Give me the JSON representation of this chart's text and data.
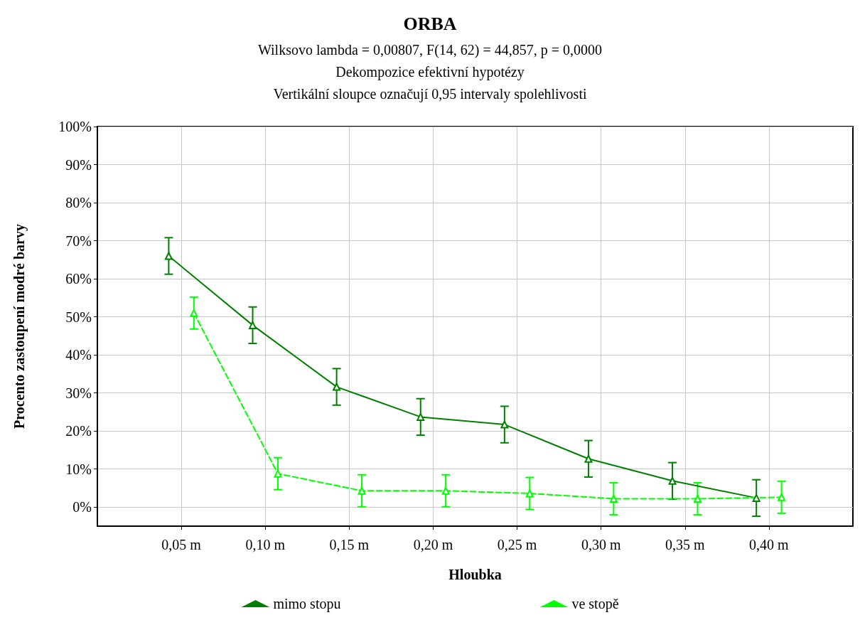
{
  "chart_data": {
    "type": "line",
    "title": "ORBA",
    "subtitle": "Wilksovo lambda = 0,00807, F(14, 62) = 44,857, p = 0,0000\nDekompozice efektivní hypotézy\nVertikální sloupce označují 0,95 intervaly spolehlivosti",
    "xlabel": "Hloubka",
    "ylabel": "Procento zastoupení modré barvy",
    "categories": [
      "0,05 m",
      "0,10 m",
      "0,15 m",
      "0,20 m",
      "0,25 m",
      "0,30 m",
      "0,35 m",
      "0,40 m"
    ],
    "series": [
      {
        "name": "mimo stopu",
        "color": "#007f00",
        "line_style": "solid",
        "values": [
          66,
          47.8,
          31.6,
          23.7,
          21.7,
          12.7,
          6.9,
          2.4
        ],
        "errors": [
          4.8,
          4.8,
          4.8,
          4.8,
          4.8,
          4.8,
          4.8,
          4.8
        ]
      },
      {
        "name": "ve stopě",
        "color": "#00ff00",
        "line_style": "dashed",
        "values": [
          51,
          8.8,
          4.3,
          4.3,
          3.6,
          2.2,
          2.2,
          2.6
        ],
        "errors": [
          4.2,
          4.2,
          4.2,
          4.2,
          4.2,
          4.2,
          4.2,
          4.2
        ]
      }
    ],
    "ylim": [
      -5,
      100
    ],
    "yticks": [
      {
        "value": 0,
        "label": "0%"
      },
      {
        "value": 10,
        "label": "10%"
      },
      {
        "value": 20,
        "label": "20%"
      },
      {
        "value": 30,
        "label": "30%"
      },
      {
        "value": 40,
        "label": "40%"
      },
      {
        "value": 50,
        "label": "50%"
      },
      {
        "value": 60,
        "label": "60%"
      },
      {
        "value": 70,
        "label": "70%"
      },
      {
        "value": 80,
        "label": "80%"
      },
      {
        "value": 90,
        "label": "90%"
      },
      {
        "value": 100,
        "label": "100%"
      }
    ],
    "grid": true,
    "legend": "bottom",
    "marker": "triangle"
  }
}
